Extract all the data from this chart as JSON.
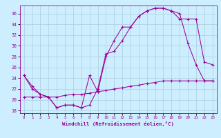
{
  "xlabel": "Windchill (Refroidissement éolien,°C)",
  "bg_color": "#cceeff",
  "line_color": "#990099",
  "grid_color": "#aaccdd",
  "xlim": [
    -0.5,
    23.5
  ],
  "ylim": [
    17.5,
    37.5
  ],
  "yticks": [
    18,
    20,
    22,
    24,
    26,
    28,
    30,
    32,
    34,
    36
  ],
  "xticks": [
    0,
    1,
    2,
    3,
    4,
    5,
    6,
    7,
    8,
    9,
    10,
    11,
    12,
    13,
    14,
    15,
    16,
    17,
    18,
    19,
    20,
    21,
    22,
    23
  ],
  "line1_x": [
    0,
    1,
    2,
    3,
    4,
    5,
    6,
    7,
    8,
    9,
    10,
    11,
    12,
    13,
    14,
    15,
    16,
    17,
    18,
    19,
    20,
    21,
    22,
    23
  ],
  "line1_y": [
    24.5,
    22.0,
    21.0,
    20.5,
    18.5,
    19.0,
    19.0,
    18.5,
    24.5,
    21.5,
    28.0,
    31.0,
    33.5,
    33.5,
    35.5,
    36.5,
    37.0,
    37.0,
    36.5,
    36.0,
    30.5,
    26.5,
    23.5,
    23.5
  ],
  "line2_x": [
    0,
    1,
    2,
    3,
    4,
    5,
    6,
    7,
    8,
    9,
    10,
    11,
    12,
    13,
    14,
    15,
    16,
    17,
    18,
    19,
    20,
    21,
    22,
    23
  ],
  "line2_y": [
    24.5,
    22.5,
    21.0,
    20.5,
    18.5,
    19.0,
    19.0,
    18.5,
    19.0,
    22.0,
    28.5,
    29.0,
    31.0,
    33.5,
    35.5,
    36.5,
    37.0,
    37.0,
    36.5,
    35.0,
    35.0,
    35.0,
    27.0,
    26.5
  ],
  "line3_x": [
    0,
    1,
    2,
    3,
    4,
    5,
    6,
    7,
    8,
    9,
    10,
    11,
    12,
    13,
    14,
    15,
    16,
    17,
    18,
    19,
    20,
    21,
    22,
    23
  ],
  "line3_y": [
    20.5,
    20.5,
    20.5,
    20.5,
    20.5,
    20.8,
    21.0,
    21.0,
    21.2,
    21.5,
    21.7,
    22.0,
    22.2,
    22.5,
    22.7,
    23.0,
    23.2,
    23.5,
    23.5,
    23.5,
    23.5,
    23.5,
    23.5,
    23.5
  ]
}
